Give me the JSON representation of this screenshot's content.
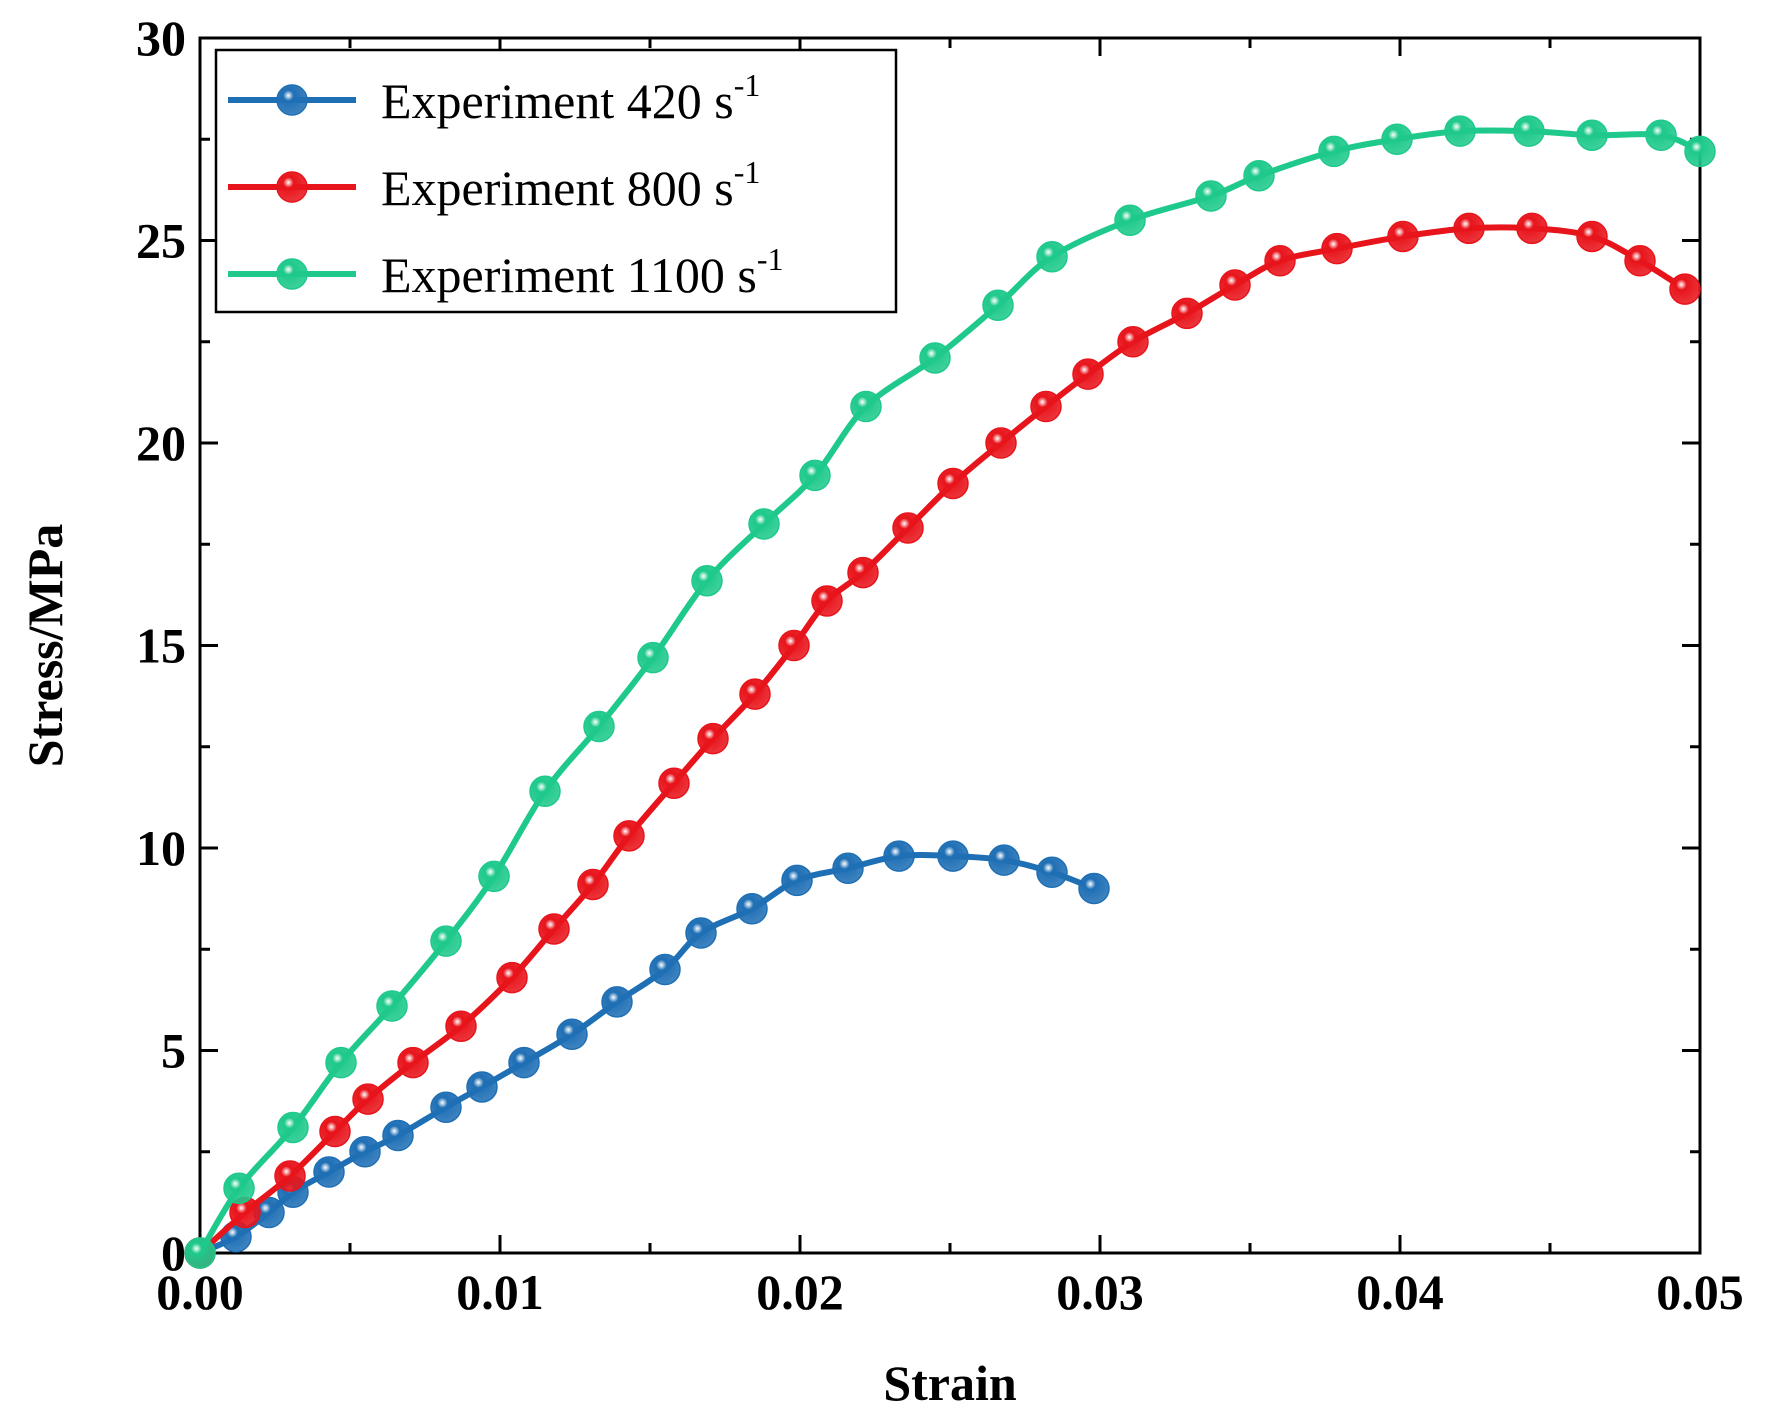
{
  "chart_data": {
    "type": "line",
    "title": "",
    "xlabel": "Strain",
    "ylabel": "Stress/MPa",
    "xlim": [
      0,
      0.05
    ],
    "ylim": [
      0,
      30
    ],
    "xticks": [
      0.0,
      0.01,
      0.02,
      0.03,
      0.04,
      0.05
    ],
    "xtick_labels": [
      "0.00",
      "0.01",
      "0.02",
      "0.03",
      "0.04",
      "0.05"
    ],
    "yticks": [
      0,
      5,
      10,
      15,
      20,
      25,
      30
    ],
    "ytick_labels": [
      "0",
      "5",
      "10",
      "15",
      "20",
      "25",
      "30"
    ],
    "grid": false,
    "legend_position": "top-left",
    "series": [
      {
        "name": "Experiment 420 s-1",
        "label_text": "Experiment 420 s",
        "label_sup": "-1",
        "color": "#1f6fb5",
        "x": [
          0.0,
          0.0012,
          0.0023,
          0.0031,
          0.0043,
          0.0055,
          0.0066,
          0.0082,
          0.0094,
          0.0108,
          0.0124,
          0.0139,
          0.0155,
          0.0167,
          0.0184,
          0.0199,
          0.0216,
          0.0233,
          0.0251,
          0.0268,
          0.0284,
          0.0298
        ],
        "y": [
          0.0,
          0.4,
          1.0,
          1.5,
          2.0,
          2.5,
          2.9,
          3.6,
          4.1,
          4.7,
          5.4,
          6.2,
          7.0,
          7.9,
          8.5,
          9.2,
          9.5,
          9.8,
          9.8,
          9.7,
          9.4,
          9.0
        ]
      },
      {
        "name": "Experiment 800 s-1",
        "label_text": "Experiment 800 s",
        "label_sup": "-1",
        "color": "#e8141b",
        "x": [
          0.0,
          0.0015,
          0.003,
          0.0045,
          0.0056,
          0.0071,
          0.0087,
          0.0104,
          0.0118,
          0.0131,
          0.0143,
          0.0158,
          0.0171,
          0.0185,
          0.0198,
          0.0209,
          0.0221,
          0.0236,
          0.0251,
          0.0267,
          0.0282,
          0.0296,
          0.0311,
          0.0329,
          0.0345,
          0.036,
          0.0379,
          0.0401,
          0.0423,
          0.0444,
          0.0464,
          0.048,
          0.0495
        ],
        "y": [
          0.0,
          1.0,
          1.9,
          3.0,
          3.8,
          4.7,
          5.6,
          6.8,
          8.0,
          9.1,
          10.3,
          11.6,
          12.7,
          13.8,
          15.0,
          16.1,
          16.8,
          17.9,
          19.0,
          20.0,
          20.9,
          21.7,
          22.5,
          23.2,
          23.9,
          24.5,
          24.8,
          25.1,
          25.3,
          25.3,
          25.1,
          24.5,
          23.8
        ]
      },
      {
        "name": "Experiment 1100 s-1",
        "label_text": "Experiment 1100 s",
        "label_sup": "-1",
        "color": "#1ec98b",
        "x": [
          0.0,
          0.0013,
          0.0031,
          0.0047,
          0.0064,
          0.0082,
          0.0098,
          0.0115,
          0.0133,
          0.0151,
          0.0169,
          0.0188,
          0.0205,
          0.0222,
          0.0245,
          0.0266,
          0.0284,
          0.031,
          0.0337,
          0.0353,
          0.0378,
          0.0399,
          0.042,
          0.0443,
          0.0464,
          0.0487,
          0.05
        ],
        "y": [
          0.0,
          1.6,
          3.1,
          4.7,
          6.1,
          7.7,
          9.3,
          11.4,
          13.0,
          14.7,
          16.6,
          18.0,
          19.2,
          20.9,
          22.1,
          23.4,
          24.6,
          25.5,
          26.1,
          26.6,
          27.2,
          27.5,
          27.7,
          27.7,
          27.6,
          27.6,
          27.2
        ]
      }
    ]
  }
}
